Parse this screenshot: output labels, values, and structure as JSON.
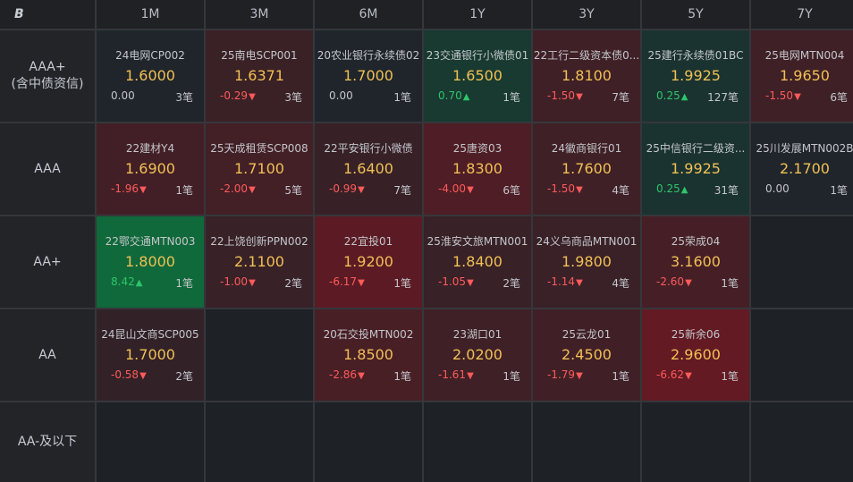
{
  "header": {
    "corner_logo": "B",
    "tenors": [
      "1M",
      "3M",
      "6M",
      "1Y",
      "3Y",
      "5Y",
      "7Y"
    ]
  },
  "rows": [
    {
      "label_lines": [
        "AAA+",
        "(含中债资信)"
      ],
      "cells": [
        {
          "name": "24电网CP002",
          "value": "1.6000",
          "change": "0.00",
          "dir": "flat",
          "count": "3笔",
          "bg": "#1f252b"
        },
        {
          "name": "25南电SCP001",
          "value": "1.6371",
          "change": "-0.29",
          "dir": "down",
          "count": "3笔",
          "bg": "#3a2126"
        },
        {
          "name": "20农业银行永续债02",
          "value": "1.7000",
          "change": "0.00",
          "dir": "flat",
          "count": "1笔",
          "bg": "#1f252b"
        },
        {
          "name": "23交通银行小微债01",
          "value": "1.6500",
          "change": "0.70",
          "dir": "up",
          "count": "1笔",
          "bg": "#183a30"
        },
        {
          "name": "22工行二级资本债0...",
          "value": "1.8100",
          "change": "-1.50",
          "dir": "down",
          "count": "7笔",
          "bg": "#3f2026"
        },
        {
          "name": "25建行永续债01BC",
          "value": "1.9925",
          "change": "0.25",
          "dir": "up",
          "count": "127笔",
          "bg": "#1b3330"
        },
        {
          "name": "25电网MTN004",
          "value": "1.9650",
          "change": "-1.50",
          "dir": "down",
          "count": "6笔",
          "bg": "#3f2026"
        }
      ]
    },
    {
      "label_lines": [
        "AAA"
      ],
      "cells": [
        {
          "name": "22建材Y4",
          "value": "1.6900",
          "change": "-1.96",
          "dir": "down",
          "count": "1笔",
          "bg": "#421f26"
        },
        {
          "name": "25天成租赁SCP008",
          "value": "1.7100",
          "change": "-2.00",
          "dir": "down",
          "count": "5笔",
          "bg": "#431f26"
        },
        {
          "name": "22平安银行小微债",
          "value": "1.6400",
          "change": "-0.99",
          "dir": "down",
          "count": "7笔",
          "bg": "#372127"
        },
        {
          "name": "25唐资03",
          "value": "1.8300",
          "change": "-4.00",
          "dir": "down",
          "count": "6笔",
          "bg": "#4f1d25"
        },
        {
          "name": "24徽商银行01",
          "value": "1.7600",
          "change": "-1.50",
          "dir": "down",
          "count": "4笔",
          "bg": "#3f2026"
        },
        {
          "name": "25中信银行二级资...",
          "value": "1.9925",
          "change": "0.25",
          "dir": "up",
          "count": "31笔",
          "bg": "#1b3330"
        },
        {
          "name": "25川发展MTN002B",
          "value": "2.1700",
          "change": "0.00",
          "dir": "flat",
          "count": "1笔",
          "bg": "#1f252b"
        }
      ]
    },
    {
      "label_lines": [
        "AA+"
      ],
      "cells": [
        {
          "name": "22鄂交通MTN003",
          "value": "1.8000",
          "change": "8.42",
          "dir": "up",
          "count": "1笔",
          "bg": "#10693a"
        },
        {
          "name": "22上饶创新PPN002",
          "value": "2.1100",
          "change": "-1.00",
          "dir": "down",
          "count": "2笔",
          "bg": "#382127"
        },
        {
          "name": "22宜投01",
          "value": "1.9200",
          "change": "-6.17",
          "dir": "down",
          "count": "1笔",
          "bg": "#5c1b24"
        },
        {
          "name": "25淮安文旅MTN001",
          "value": "1.8400",
          "change": "-1.05",
          "dir": "down",
          "count": "2笔",
          "bg": "#382127"
        },
        {
          "name": "24义乌商品MTN001",
          "value": "1.9800",
          "change": "-1.14",
          "dir": "down",
          "count": "4笔",
          "bg": "#392127"
        },
        {
          "name": "25荣成04",
          "value": "3.1600",
          "change": "-2.60",
          "dir": "down",
          "count": "1笔",
          "bg": "#461f26"
        },
        null
      ]
    },
    {
      "label_lines": [
        "AA"
      ],
      "cells": [
        {
          "name": "24昆山文商SCP005",
          "value": "1.7000",
          "change": "-0.58",
          "dir": "down",
          "count": "2笔",
          "bg": "#322227"
        },
        null,
        {
          "name": "20石交投MTN002",
          "value": "1.8500",
          "change": "-2.86",
          "dir": "down",
          "count": "1笔",
          "bg": "#491f26"
        },
        {
          "name": "23湖口01",
          "value": "2.0200",
          "change": "-1.61",
          "dir": "down",
          "count": "1笔",
          "bg": "#3f2026"
        },
        {
          "name": "25云龙01",
          "value": "2.4500",
          "change": "-1.79",
          "dir": "down",
          "count": "1笔",
          "bg": "#402026"
        },
        {
          "name": "25新余06",
          "value": "2.9600",
          "change": "-6.62",
          "dir": "down",
          "count": "1笔",
          "bg": "#631a23"
        },
        null
      ]
    },
    {
      "label_lines": [
        "AA-及以下"
      ],
      "cells": [
        null,
        null,
        null,
        null,
        null,
        null,
        null
      ]
    }
  ],
  "colors": {
    "value_text": "#f0c055",
    "up": "#2ec56b",
    "down": "#ff5a5a"
  }
}
